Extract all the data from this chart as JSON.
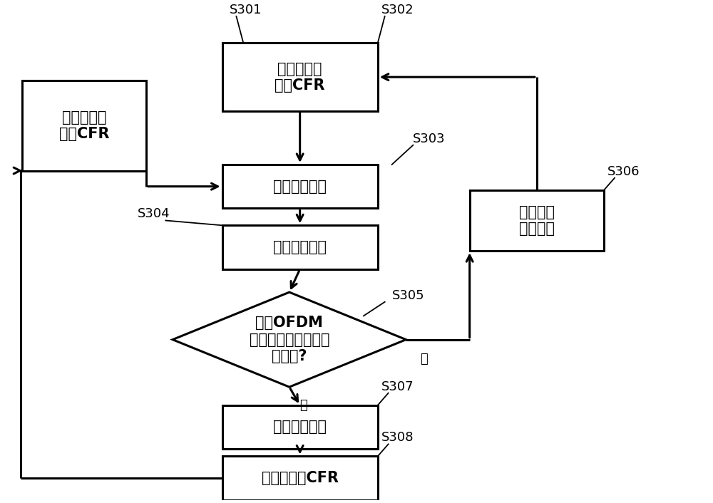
{
  "background_color": "#ffffff",
  "fig_width": 10.0,
  "fig_height": 7.06,
  "dpi": 100,
  "B1": [
    0.115,
    0.77,
    0.175,
    0.185
  ],
  "B2": [
    0.42,
    0.87,
    0.22,
    0.14
  ],
  "B3": [
    0.42,
    0.645,
    0.22,
    0.09
  ],
  "B4": [
    0.42,
    0.52,
    0.22,
    0.09
  ],
  "B5": [
    0.405,
    0.33,
    0.33,
    0.195
  ],
  "B6": [
    0.755,
    0.575,
    0.19,
    0.125
  ],
  "B7": [
    0.42,
    0.15,
    0.22,
    0.09
  ],
  "B8": [
    0.42,
    0.045,
    0.22,
    0.09
  ],
  "B1_text": "估计插值导\n频处CFR",
  "B2_text": "估计训练导\n频处CFR",
  "B3_text": "计算误差信号",
  "B4_text": "更新抽头系数",
  "B5_text": "当前OFDM\n符号中训练导频全部\n训练完?",
  "B6_text": "取下一个\n训练导频",
  "B7_text": "输出插值系数",
  "B8_text": "估计数据处CFR",
  "S301_text": "S301",
  "S302_text": "S302",
  "S303_text": "S303",
  "S304_text": "S304",
  "S305_text": "S305",
  "S306_text": "S306",
  "S307_text": "S307",
  "S308_text": "S308",
  "yes_text": "是",
  "no_text": "否",
  "font_size_box": 15,
  "font_size_label": 13,
  "line_width": 2.2
}
